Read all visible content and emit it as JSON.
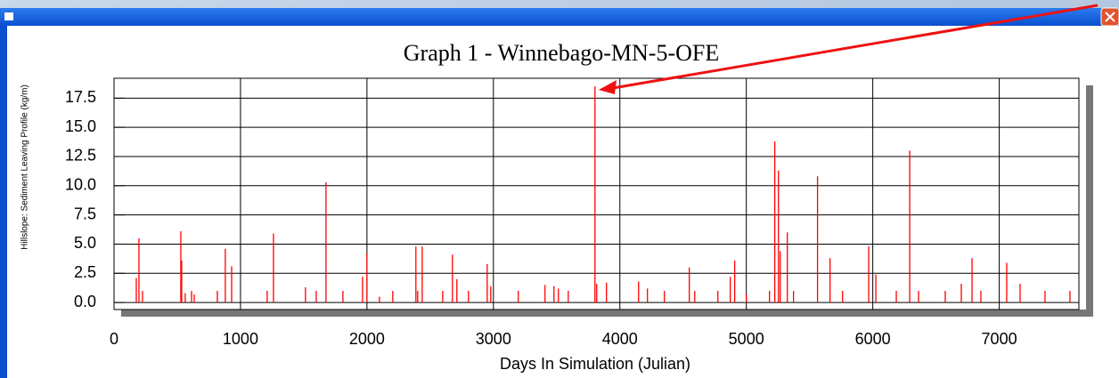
{
  "chart_data": {
    "type": "bar",
    "title": "Graph 1 - Winnebago-MN-5-OFE",
    "xlabel": "Days In Simulation (Julian)",
    "ylabel": "Hillslope: Sediment Leaving Profile (kg/m)",
    "color": "#ff0000",
    "grid": true,
    "xlim": [
      0,
      7630
    ],
    "ylim": [
      -0.6,
      19.2
    ],
    "xticks": [
      0,
      1000,
      2000,
      3000,
      4000,
      5000,
      6000,
      7000
    ],
    "yticks": [
      {
        "value": 0,
        "label": "0.0"
      },
      {
        "value": 2.5,
        "label": "2.5"
      },
      {
        "value": 5,
        "label": "5.0"
      },
      {
        "value": 7.5,
        "label": "7.5"
      },
      {
        "value": 10,
        "label": "10.0"
      },
      {
        "value": 12.5,
        "label": "12.5"
      },
      {
        "value": 15,
        "label": "15.0"
      },
      {
        "value": 17.5,
        "label": "17.5"
      }
    ],
    "x": [
      176,
      197,
      225,
      528,
      535,
      563,
      613,
      634,
      817,
      880,
      930,
      1211,
      1261,
      1514,
      1599,
      1676,
      1810,
      1965,
      2000,
      2099,
      2204,
      2387,
      2401,
      2437,
      2599,
      2676,
      2711,
      2803,
      2951,
      2979,
      3197,
      3408,
      3479,
      3514,
      3592,
      3803,
      3817,
      3894,
      4148,
      4218,
      4352,
      4549,
      4592,
      4775,
      4873,
      4908,
      5000,
      5183,
      5225,
      5254,
      5268,
      5324,
      5373,
      5563,
      5662,
      5761,
      5968,
      6024,
      6186,
      6292,
      6362,
      6573,
      6700,
      6785,
      6855,
      7059,
      7165,
      7362,
      7559
    ],
    "values": [
      2.1,
      5.5,
      1.0,
      6.1,
      3.6,
      0.8,
      1.0,
      0.7,
      1.0,
      4.6,
      3.1,
      1.0,
      5.9,
      1.3,
      1.0,
      10.3,
      1.0,
      2.2,
      4.2,
      0.5,
      1.0,
      4.8,
      1.0,
      4.8,
      1.0,
      4.1,
      2.0,
      1.0,
      3.3,
      1.4,
      1.0,
      1.5,
      1.4,
      1.2,
      1.0,
      18.5,
      1.6,
      1.7,
      1.8,
      1.2,
      1.0,
      3.0,
      1.0,
      1.0,
      2.2,
      3.6,
      0.7,
      1.0,
      13.8,
      11.3,
      4.4,
      6.0,
      1.0,
      10.8,
      3.8,
      1.0,
      4.8,
      2.4,
      1.0,
      13.0,
      1.0,
      1.0,
      1.6,
      3.8,
      1.0,
      3.4,
      1.6,
      1.0,
      1.0
    ]
  }
}
